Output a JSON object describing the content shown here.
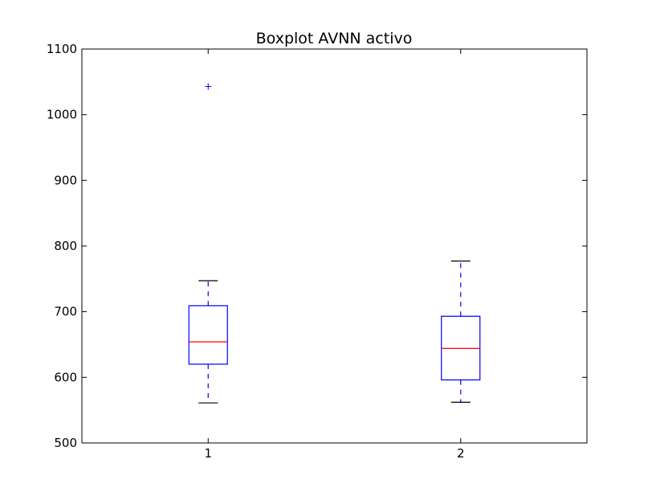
{
  "chart_data": {
    "type": "boxplot",
    "title": "Boxplot AVNN activo",
    "xlabel": "",
    "ylabel": "",
    "categories": [
      "1",
      "2"
    ],
    "ylim": [
      500,
      1100
    ],
    "yticks": [
      500,
      600,
      700,
      800,
      900,
      1000,
      1100
    ],
    "grid": false,
    "series": [
      {
        "category": "1",
        "whisker_low": 561,
        "q1": 620,
        "median": 654,
        "q3": 709,
        "whisker_high": 747,
        "outliers": [
          1043
        ]
      },
      {
        "category": "2",
        "whisker_low": 562,
        "q1": 596,
        "median": 644,
        "q3": 693,
        "whisker_high": 777,
        "outliers": []
      }
    ],
    "colors": {
      "box": "#0000ff",
      "median": "#ff0000",
      "whisker": "#0000ff",
      "cap": "#000000",
      "flier": "#0000ff",
      "axes": "#000000"
    }
  }
}
